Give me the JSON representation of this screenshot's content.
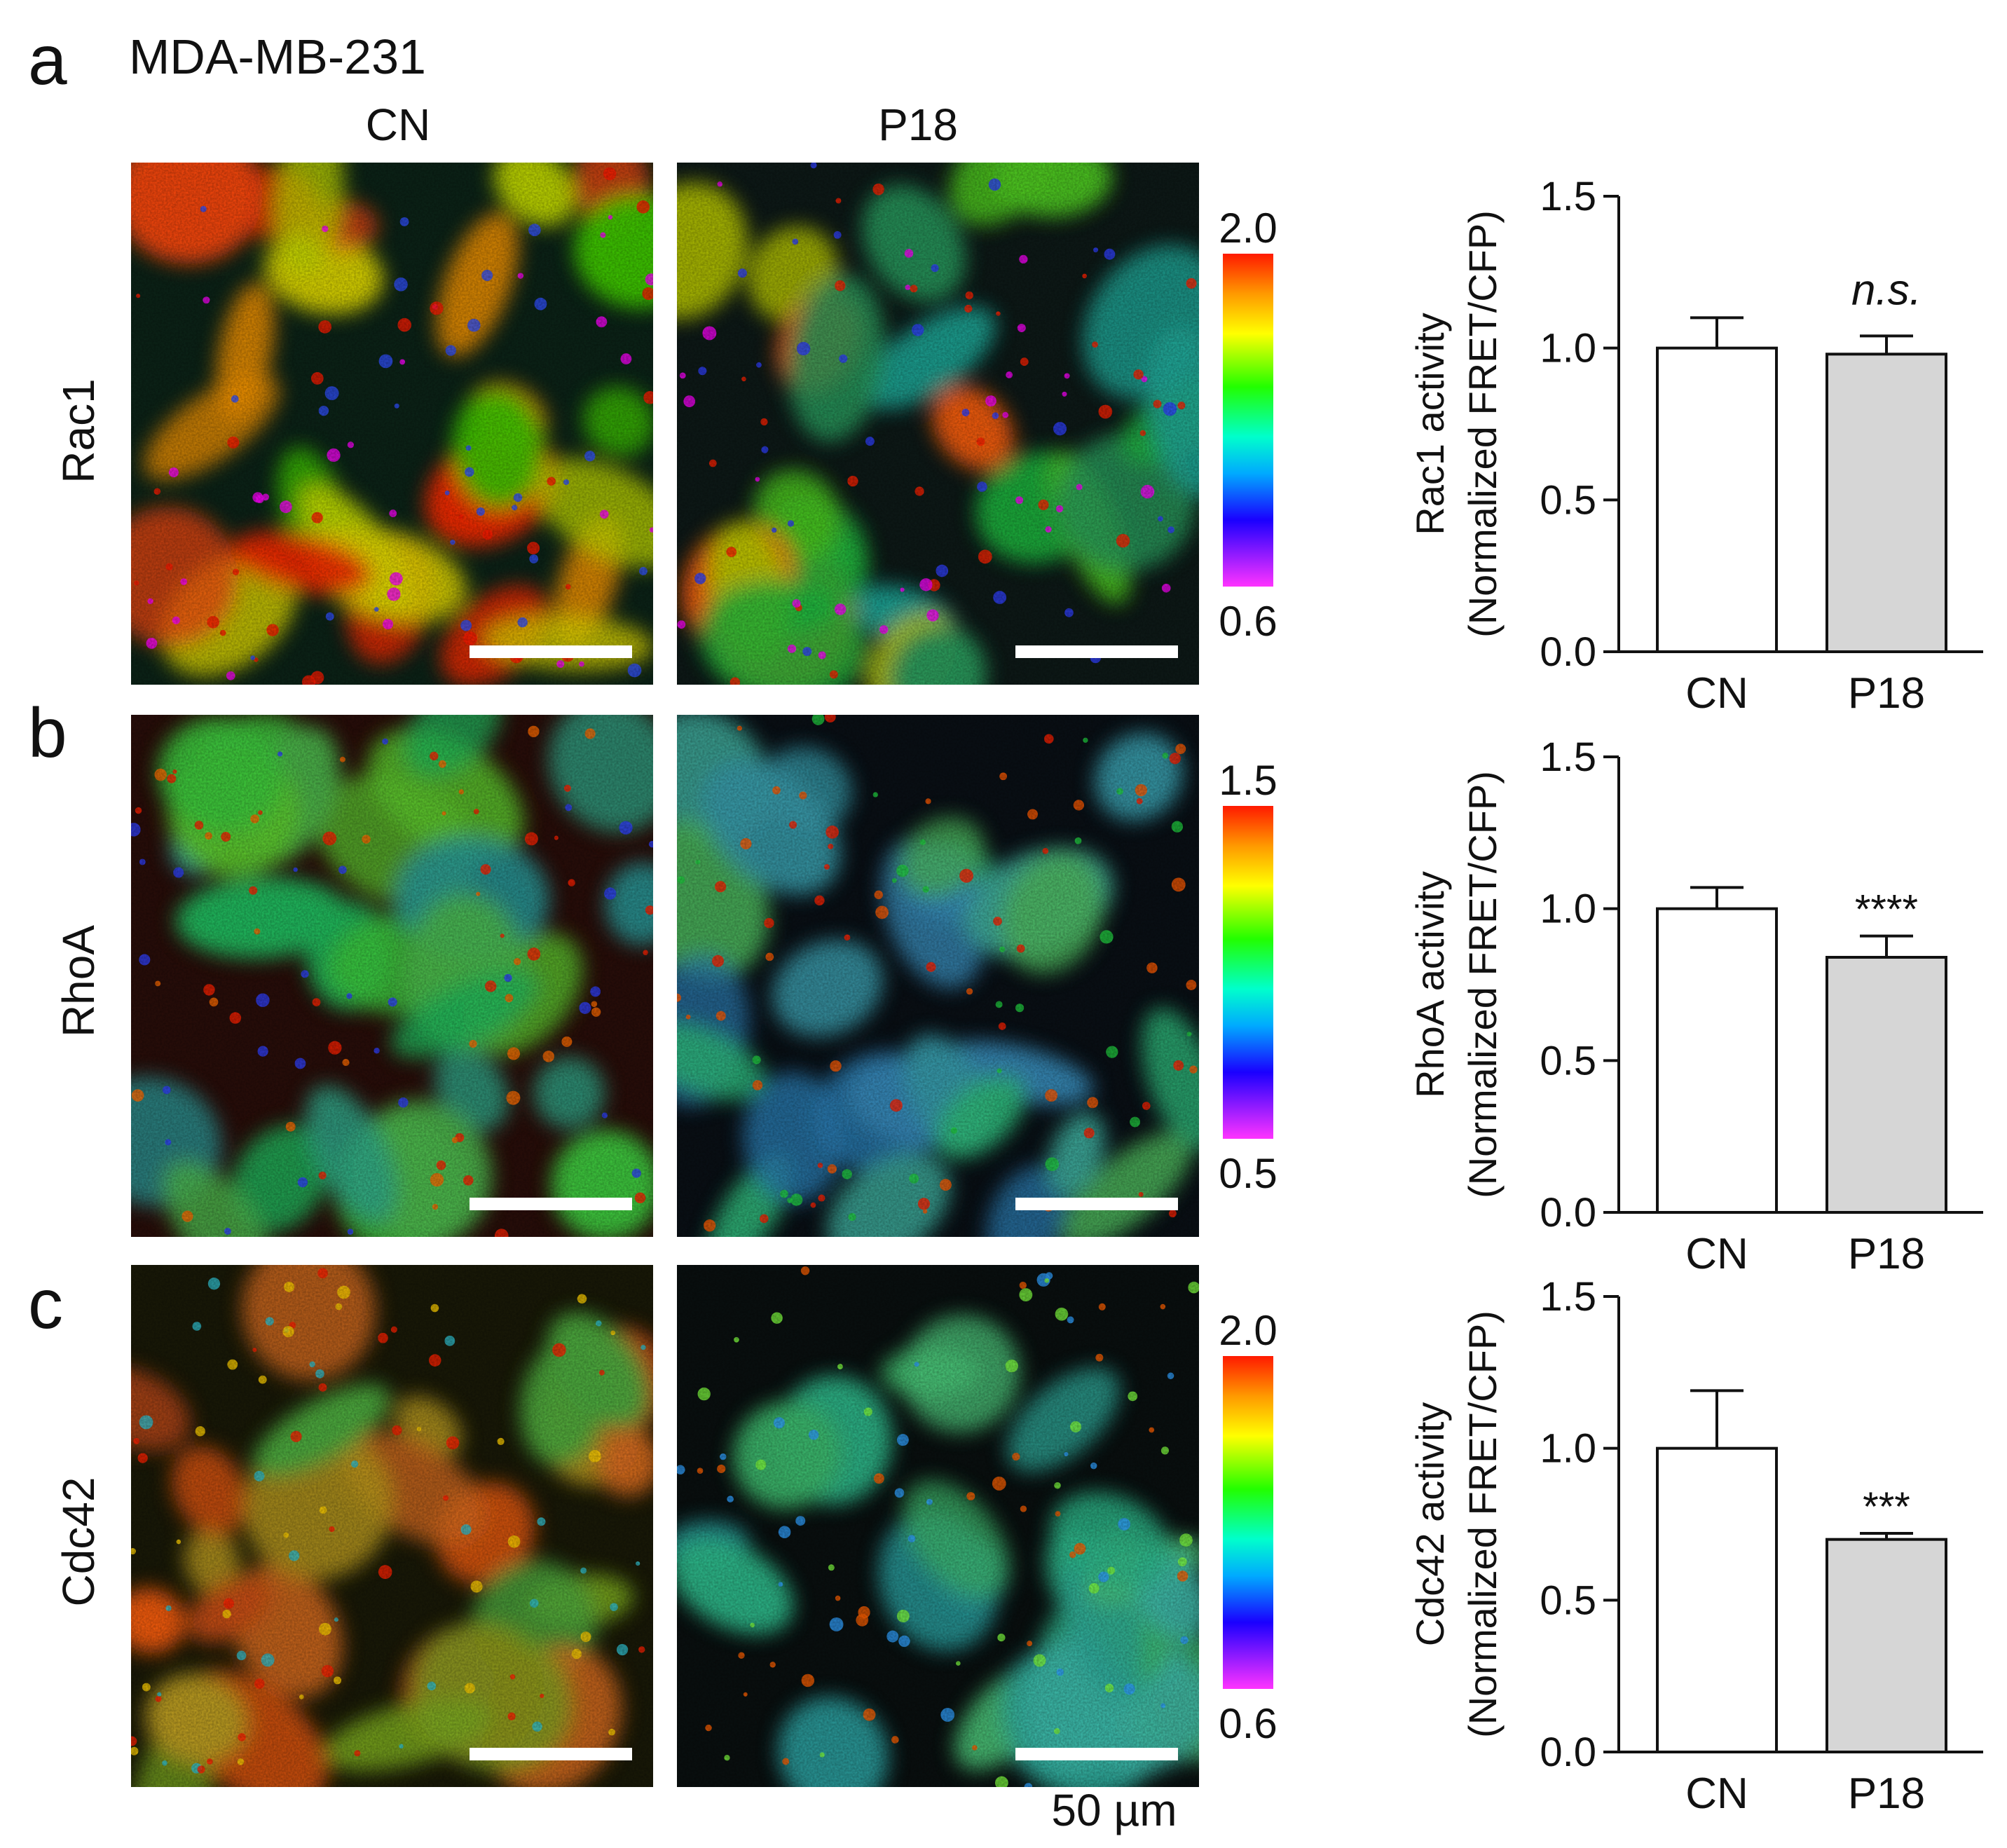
{
  "figure": {
    "cell_line": "MDA-MB-231",
    "conditions": [
      "CN",
      "P18"
    ],
    "scale_bar_label": "50 µm"
  },
  "panels": [
    {
      "letter": "a",
      "protein": "Rac1",
      "colorbar": {
        "max": "2.0",
        "min": "0.6"
      },
      "images": [
        {
          "condition": "CN",
          "appearance": "mostly yellow-red (high ratio)"
        },
        {
          "condition": "P18",
          "appearance": "mixed green with red/blue spots"
        }
      ]
    },
    {
      "letter": "b",
      "protein": "RhoA",
      "colorbar": {
        "max": "1.5",
        "min": "0.5"
      },
      "images": [
        {
          "condition": "CN",
          "appearance": "green-cyan with red nuclei, dark red background"
        },
        {
          "condition": "P18",
          "appearance": "cyan-blue with red nuclei"
        }
      ]
    },
    {
      "letter": "c",
      "protein": "Cdc42",
      "colorbar": {
        "max": "2.0",
        "min": "0.6"
      },
      "images": [
        {
          "condition": "CN",
          "appearance": "orange-red with green"
        },
        {
          "condition": "P18",
          "appearance": "cyan-green"
        }
      ]
    }
  ],
  "chart_data": [
    {
      "type": "bar",
      "ylabel_line1": "Rac1 activity",
      "ylabel_line2": "(Normalized FRET/CFP)",
      "categories": [
        "CN",
        "P18"
      ],
      "values": [
        1.0,
        0.98
      ],
      "error": [
        0.1,
        0.06
      ],
      "bar_colors": [
        "#ffffff",
        "#d6d6d6"
      ],
      "significance": "n.s.",
      "significance_italic": true,
      "ylim": [
        0,
        1.5
      ],
      "yticks": [
        "0.0",
        "0.5",
        "1.0",
        "1.5"
      ]
    },
    {
      "type": "bar",
      "ylabel_line1": "RhoA activity",
      "ylabel_line2": "(Normalized FRET/CFP)",
      "categories": [
        "CN",
        "P18"
      ],
      "values": [
        1.0,
        0.84
      ],
      "error": [
        0.07,
        0.07
      ],
      "bar_colors": [
        "#ffffff",
        "#d6d6d6"
      ],
      "significance": "****",
      "significance_italic": false,
      "ylim": [
        0,
        1.5
      ],
      "yticks": [
        "0.0",
        "0.5",
        "1.0",
        "1.5"
      ]
    },
    {
      "type": "bar",
      "ylabel_line1": "Cdc42 activity",
      "ylabel_line2": "(Normalized FRET/CFP)",
      "categories": [
        "CN",
        "P18"
      ],
      "values": [
        1.0,
        0.7
      ],
      "error": [
        0.19,
        0.02
      ],
      "bar_colors": [
        "#ffffff",
        "#d6d6d6"
      ],
      "significance": "***",
      "significance_italic": false,
      "ylim": [
        0,
        1.5
      ],
      "yticks": [
        "0.0",
        "0.5",
        "1.0",
        "1.5"
      ]
    }
  ]
}
